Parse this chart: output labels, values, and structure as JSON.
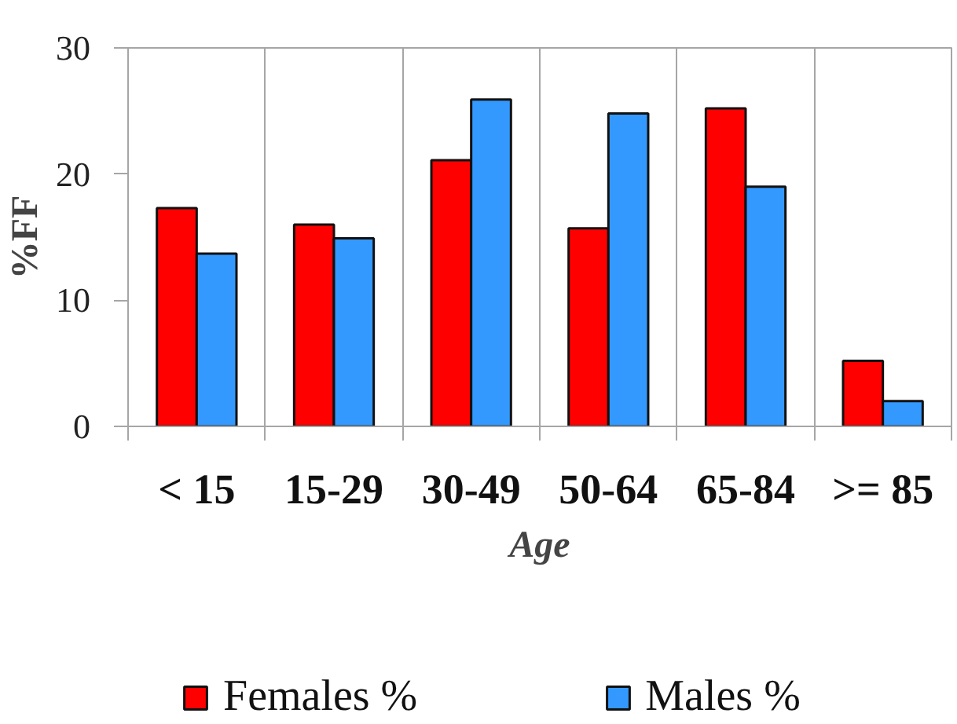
{
  "chart_data": {
    "type": "bar",
    "categories": [
      "< 15",
      "15-29",
      "30-49",
      "50-64",
      "65-84",
      ">= 85"
    ],
    "xlabel": "Age",
    "ylabel": "%FF",
    "series": [
      {
        "name": "Females %",
        "color": "#ff0000",
        "values": [
          17.3,
          16.0,
          21.1,
          15.7,
          25.2,
          5.2
        ]
      },
      {
        "name": "Males %",
        "color": "#3399ff",
        "values": [
          13.7,
          14.9,
          25.9,
          24.8,
          19.0,
          2.0
        ]
      }
    ],
    "ylim": [
      0,
      30
    ],
    "yticks": [
      0,
      10,
      20,
      30
    ],
    "grid": "x",
    "legend": "bottom"
  }
}
